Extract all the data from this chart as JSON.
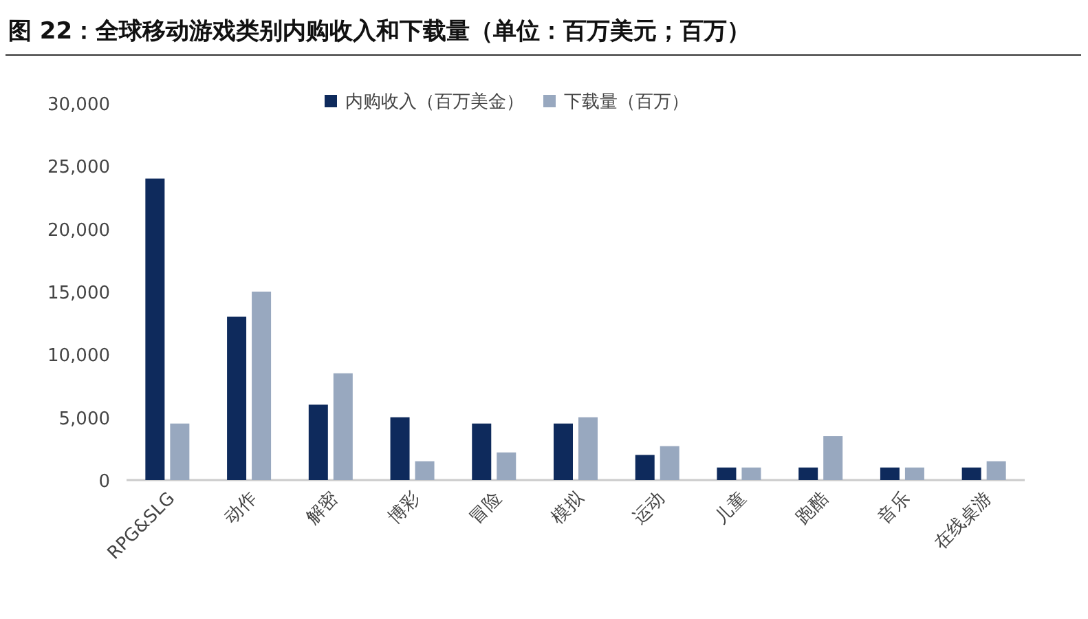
{
  "chart_data": {
    "type": "bar",
    "title": "图 22：全球移动游戏类别内购收入和下载量（单位：百万美元；百万）",
    "categories": [
      "RPG&SLG",
      "动作",
      "解密",
      "博彩",
      "冒险",
      "模拟",
      "运动",
      "儿童",
      "跑酷",
      "音乐",
      "在线桌游"
    ],
    "series": [
      {
        "name": "内购收入（百万美金）",
        "color": "#0e2a5c",
        "values": [
          24000,
          13000,
          6000,
          5000,
          4500,
          4500,
          2000,
          1000,
          1000,
          1000,
          1000
        ]
      },
      {
        "name": "下载量（百万）",
        "color": "#98a8bf",
        "values": [
          4500,
          15000,
          8500,
          1500,
          2200,
          5000,
          2700,
          1000,
          3500,
          1000,
          1500
        ]
      }
    ],
    "ylim": [
      0,
      30000
    ],
    "yticks": [
      {
        "value": 0,
        "label": "0"
      },
      {
        "value": 5000,
        "label": "5,000"
      },
      {
        "value": 10000,
        "label": "10,000"
      },
      {
        "value": 15000,
        "label": "15,000"
      },
      {
        "value": 20000,
        "label": "20,000"
      },
      {
        "value": 25000,
        "label": "25,000"
      },
      {
        "value": 30000,
        "label": "30,000"
      }
    ],
    "legend": "top"
  }
}
